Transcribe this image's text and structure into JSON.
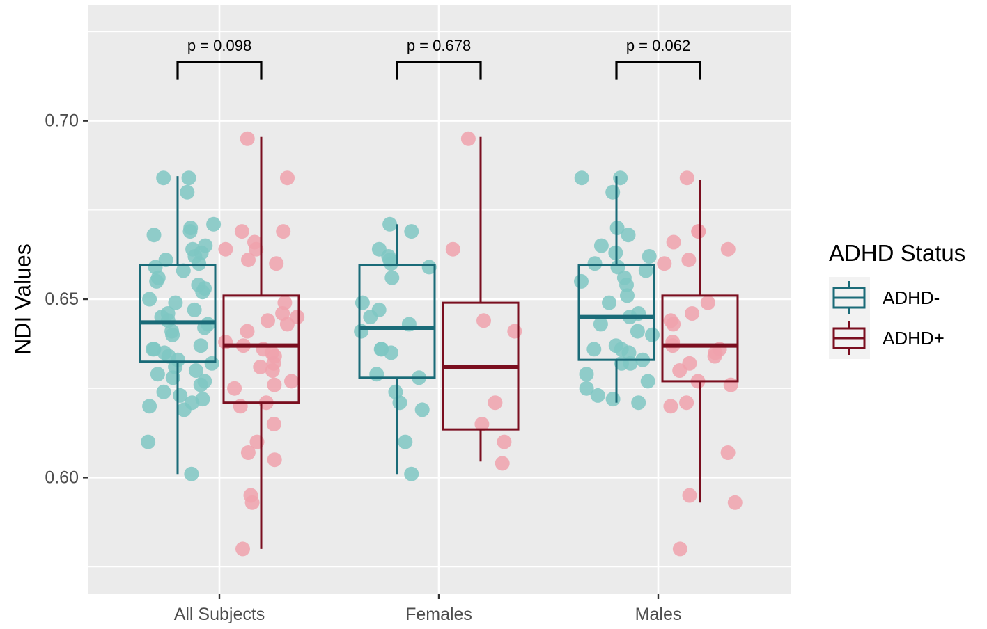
{
  "chart_data": {
    "type": "box",
    "ylabel": "NDI Values",
    "xlabel": "",
    "ylim": [
      0.5675,
      0.7325
    ],
    "y_ticks": [
      {
        "value": 0.6,
        "label": "0.60"
      },
      {
        "value": 0.65,
        "label": "0.65"
      },
      {
        "value": 0.7,
        "label": "0.70"
      }
    ],
    "y_minor_gridlines": [
      0.575,
      0.625,
      0.675,
      0.725
    ],
    "categories": [
      "All Subjects",
      "Females",
      "Males"
    ],
    "legend": {
      "title": "ADHD Status",
      "position": "right",
      "entries": [
        {
          "name": "ADHD-",
          "color": "#1a6b78"
        },
        {
          "name": "ADHD+",
          "color": "#7a0e1f"
        }
      ]
    },
    "colors": {
      "panel": "#ebebeb",
      "grid": "#ffffff",
      "adhd_minus_box": "#1a6b78",
      "adhd_plus_box": "#7a0e1f",
      "adhd_minus_point": "#7fc7c3",
      "adhd_plus_point": "#f0a2ad"
    },
    "comparisons": [
      {
        "category": "All Subjects",
        "label": "p = 0.098",
        "bracket_y": 0.7115,
        "bracket_top": 0.7165
      },
      {
        "category": "Females",
        "label": "p = 0.678",
        "bracket_y": 0.7115,
        "bracket_top": 0.7165
      },
      {
        "category": "Males",
        "label": "p = 0.062",
        "bracket_y": 0.7115,
        "bracket_top": 0.7165
      }
    ],
    "series": [
      {
        "name": "ADHD-",
        "boxes": [
          {
            "category": "All Subjects",
            "q1": 0.6325,
            "median": 0.6435,
            "q3": 0.6595,
            "lower_whisker": 0.601,
            "upper_whisker": 0.6845
          },
          {
            "category": "Females",
            "q1": 0.628,
            "median": 0.642,
            "q3": 0.6595,
            "lower_whisker": 0.601,
            "upper_whisker": 0.671
          },
          {
            "category": "Males",
            "q1": 0.633,
            "median": 0.645,
            "q3": 0.6595,
            "lower_whisker": 0.621,
            "upper_whisker": 0.6845
          }
        ],
        "points": [
          {
            "category": "All Subjects",
            "values": [
              0.684,
              0.684,
              0.68,
              0.671,
              0.67,
              0.669,
              0.668,
              0.665,
              0.664,
              0.663,
              0.662,
              0.661,
              0.66,
              0.659,
              0.658,
              0.656,
              0.655,
              0.654,
              0.653,
              0.652,
              0.65,
              0.649,
              0.647,
              0.646,
              0.645,
              0.644,
              0.643,
              0.642,
              0.641,
              0.64,
              0.637,
              0.636,
              0.636,
              0.635,
              0.634,
              0.633,
              0.632,
              0.631,
              0.63,
              0.629,
              0.628,
              0.627,
              0.626,
              0.624,
              0.623,
              0.622,
              0.621,
              0.62,
              0.619,
              0.61,
              0.601
            ]
          },
          {
            "category": "Females",
            "values": [
              0.671,
              0.669,
              0.664,
              0.662,
              0.661,
              0.66,
              0.659,
              0.656,
              0.649,
              0.647,
              0.645,
              0.643,
              0.641,
              0.636,
              0.636,
              0.635,
              0.629,
              0.628,
              0.624,
              0.621,
              0.619,
              0.61,
              0.601
            ]
          },
          {
            "category": "Males",
            "values": [
              0.684,
              0.684,
              0.68,
              0.67,
              0.668,
              0.665,
              0.663,
              0.662,
              0.66,
              0.659,
              0.658,
              0.656,
              0.655,
              0.654,
              0.651,
              0.649,
              0.646,
              0.645,
              0.643,
              0.641,
              0.64,
              0.637,
              0.636,
              0.636,
              0.635,
              0.633,
              0.632,
              0.632,
              0.629,
              0.627,
              0.625,
              0.623,
              0.622,
              0.621
            ]
          }
        ]
      },
      {
        "name": "ADHD+",
        "boxes": [
          {
            "category": "All Subjects",
            "q1": 0.621,
            "median": 0.637,
            "q3": 0.651,
            "lower_whisker": 0.58,
            "upper_whisker": 0.6955
          },
          {
            "category": "Females",
            "q1": 0.6135,
            "median": 0.631,
            "q3": 0.649,
            "lower_whisker": 0.6045,
            "upper_whisker": 0.6955
          },
          {
            "category": "Males",
            "q1": 0.627,
            "median": 0.637,
            "q3": 0.651,
            "lower_whisker": 0.593,
            "upper_whisker": 0.6835
          }
        ],
        "points": [
          {
            "category": "All Subjects",
            "values": [
              0.695,
              0.684,
              0.669,
              0.669,
              0.666,
              0.664,
              0.664,
              0.661,
              0.66,
              0.649,
              0.646,
              0.645,
              0.644,
              0.643,
              0.641,
              0.638,
              0.637,
              0.636,
              0.635,
              0.634,
              0.632,
              0.631,
              0.63,
              0.627,
              0.626,
              0.625,
              0.621,
              0.62,
              0.615,
              0.61,
              0.607,
              0.605,
              0.595,
              0.593,
              0.58
            ]
          },
          {
            "category": "Females",
            "values": [
              0.695,
              0.664,
              0.644,
              0.641,
              0.621,
              0.615,
              0.61,
              0.604
            ]
          },
          {
            "category": "Males",
            "values": [
              0.684,
              0.669,
              0.669,
              0.666,
              0.664,
              0.661,
              0.66,
              0.649,
              0.646,
              0.644,
              0.643,
              0.638,
              0.637,
              0.636,
              0.635,
              0.634,
              0.632,
              0.63,
              0.627,
              0.626,
              0.621,
              0.62,
              0.607,
              0.595,
              0.593,
              0.58
            ]
          }
        ]
      }
    ]
  }
}
